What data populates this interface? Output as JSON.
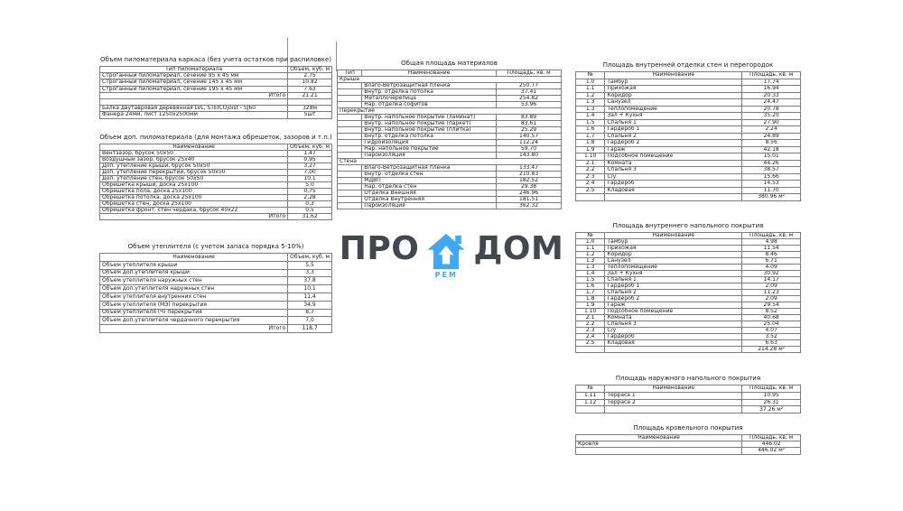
{
  "logo": {
    "word_left": "ПРО",
    "word_right": "ДОМ",
    "sub_label": "РЕМ",
    "house_color": "#3fa9f5",
    "text_color": "#43484e"
  },
  "tables": {
    "lumber_frame": {
      "title": "Объем пиломатериала каркаса (без учета остатков при распиловке)",
      "columns": [
        {
          "label": "Тип пиломатериала",
          "width": "81%"
        },
        {
          "label": "Объем, куб. м",
          "width": "19%"
        }
      ],
      "rows": [
        {
          "type": "item2",
          "cells": [
            "Строганный пиломатериал, сечение 95 х 45 мм",
            "2.75"
          ]
        },
        {
          "type": "item2",
          "cells": [
            "Строганный пиломатериал, сечение 145 х 45 мм",
            "10.82"
          ]
        },
        {
          "type": "item2",
          "cells": [
            "Строганный пиломатериал, сечение 195 х 45 мм",
            "7.63"
          ]
        },
        {
          "type": "total2",
          "cells": [
            "Итого",
            "21.21"
          ]
        },
        {
          "type": "empty2",
          "cells": [
            "",
            ""
          ]
        },
        {
          "type": "item2",
          "cells": [
            "Балка двутавровая деревянная LVL, STEICOjoist - SJ60",
            "328м"
          ]
        },
        {
          "type": "item2",
          "cells": [
            "Фанера 24мм, лист 1250х2500мм",
            "5шт"
          ]
        }
      ]
    },
    "lumber_additional": {
      "title": "Объем доп. пиломатериала (для монтажа обрешеток, зазоров и т.п.)",
      "columns": [
        {
          "label": "Наименование",
          "width": "81%"
        },
        {
          "label": "Объем, куб. м",
          "width": "19%"
        }
      ],
      "rows": [
        {
          "type": "item2",
          "cells": [
            "Вентзазор, брусок 50х50",
            "1,47"
          ]
        },
        {
          "type": "item2",
          "cells": [
            "Воздушный зазор, брусок 25х40",
            "0,95"
          ]
        },
        {
          "type": "item2",
          "cells": [
            "Доп. утепление крыши, брусок 50х50",
            "3,27"
          ]
        },
        {
          "type": "item2",
          "cells": [
            "Доп. утепление перекрытий, брусок 50х50",
            "7,00"
          ]
        },
        {
          "type": "item2",
          "cells": [
            "Доп. утепление стен, брусок 50х50",
            "10,1"
          ]
        },
        {
          "type": "item2",
          "cells": [
            "Обрешетка крыши, доска 25х100",
            "5,0"
          ]
        },
        {
          "type": "item2",
          "cells": [
            "Обрешетка пола, доска 25х100",
            "0,75"
          ]
        },
        {
          "type": "item2",
          "cells": [
            "Обрешетка потолка, доска 25х100",
            "2,28"
          ]
        },
        {
          "type": "item2",
          "cells": [
            "Обрешетка стен, доска 25х100",
            "0,3"
          ]
        },
        {
          "type": "item2",
          "cells": [
            "Обрешетка фронт. стен чердака, брусок 40х22",
            "0,5"
          ]
        },
        {
          "type": "total2",
          "cells": [
            "Итого",
            "31,62"
          ]
        }
      ]
    },
    "insulation": {
      "title": "Объем утеплителя (с учетом запаса порядка 5-10%)",
      "columns": [
        {
          "label": "Наименование",
          "width": "81%"
        },
        {
          "label": "Объем, куб. м",
          "width": "19%"
        }
      ],
      "rows": [
        {
          "type": "item2",
          "cells": [
            "Объем утеплителя крыши",
            "5,5"
          ]
        },
        {
          "type": "item2",
          "cells": [
            "Объем доп.утеплителя крыши",
            "3,3"
          ]
        },
        {
          "type": "item2",
          "cells": [
            "Объем утеплителя наружных стен",
            "37,8"
          ]
        },
        {
          "type": "item2",
          "cells": [
            "Объем доп.утеплителя наружных стен",
            "10,1"
          ]
        },
        {
          "type": "item2",
          "cells": [
            "Объем утеплителя внутренних стен",
            "11,4"
          ]
        },
        {
          "type": "item2",
          "cells": [
            "Объем утеплителя (МЭ) перекрытия",
            "34,9"
          ]
        },
        {
          "type": "item2",
          "cells": [
            "Объем утеплителя (Ч) перекрытия",
            "8,7"
          ]
        },
        {
          "type": "item2",
          "cells": [
            "Объем доп.утеплителя чердачного перекрытия",
            "7,0"
          ]
        },
        {
          "type": "total2",
          "cells": [
            "Итого",
            "118,7"
          ]
        }
      ]
    },
    "materials_area": {
      "title": "Общая площадь материалов",
      "columns": [
        {
          "label": "Тип",
          "width": "11%"
        },
        {
          "label": "Наименование",
          "width": "60%"
        },
        {
          "label": "Площадь, кв. м",
          "width": "29%"
        }
      ],
      "rows": [
        {
          "type": "group",
          "cells": [
            "Крыша"
          ]
        },
        {
          "type": "sub3",
          "cells": [
            "",
            "Влаго-Ветрозащитная пленка",
            "250.77"
          ]
        },
        {
          "type": "sub3",
          "cells": [
            "",
            "Внутр. отделка потолка",
            "37.41"
          ]
        },
        {
          "type": "sub3",
          "cells": [
            "",
            "Металлочерепица",
            "254.82"
          ]
        },
        {
          "type": "sub3",
          "cells": [
            "",
            "Нар. отделка софитов",
            "53.96"
          ]
        },
        {
          "type": "group",
          "cells": [
            "Перекрытие"
          ]
        },
        {
          "type": "sub3",
          "cells": [
            "",
            "Внутр. напольное покрытие (ламинат)",
            "83.89"
          ]
        },
        {
          "type": "sub3",
          "cells": [
            "",
            "Внутр. напольное покрытие (паркет)",
            "83.61"
          ]
        },
        {
          "type": "sub3",
          "cells": [
            "",
            "Внутр. напольное покрытие (плитка)",
            "25.29"
          ]
        },
        {
          "type": "sub3",
          "cells": [
            "",
            "Внутр. отделка потолка",
            "140.57"
          ]
        },
        {
          "type": "sub3",
          "cells": [
            "",
            "Гидроизоляция",
            "112.24"
          ]
        },
        {
          "type": "sub3",
          "cells": [
            "",
            "Нар. напольное покрытие",
            "59.70"
          ]
        },
        {
          "type": "sub3",
          "cells": [
            "",
            "Пароизоляция",
            "143.80"
          ]
        },
        {
          "type": "group",
          "cells": [
            "Стена"
          ]
        },
        {
          "type": "sub3",
          "cells": [
            "",
            "Влаго-Ветрозащитная пленка",
            "133.47"
          ]
        },
        {
          "type": "sub3",
          "cells": [
            "",
            "Внутр. отделка стен",
            "210.83"
          ]
        },
        {
          "type": "sub3",
          "cells": [
            "",
            "МДВП",
            "182.52"
          ]
        },
        {
          "type": "sub3",
          "cells": [
            "",
            "Нар. отделка стен",
            "29.38"
          ]
        },
        {
          "type": "sub3",
          "cells": [
            "",
            "Отделка Внешняя",
            "246.96"
          ]
        },
        {
          "type": "sub3",
          "cells": [
            "",
            "Отделка Внутренняя",
            "181.51"
          ]
        },
        {
          "type": "sub3",
          "cells": [
            "",
            "Пароизоляция",
            "362.32"
          ]
        }
      ]
    },
    "walls_finish": {
      "title": "Площадь внутренней отделки стен и перегородок",
      "columns": [
        {
          "label": "№",
          "width": "13%"
        },
        {
          "label": "Наименование",
          "width": "61%"
        },
        {
          "label": "Площадь, кв. м",
          "width": "26%"
        }
      ],
      "rows": [
        {
          "type": "item3",
          "cells": [
            "1.0",
            "Тамбур",
            "17.74"
          ]
        },
        {
          "type": "item3",
          "cells": [
            "1.1",
            "Прихожая",
            "16.94"
          ]
        },
        {
          "type": "item3",
          "cells": [
            "1.2",
            "Коридор",
            "20.33"
          ]
        },
        {
          "type": "item3",
          "cells": [
            "1.3",
            "Санузел",
            "24.47"
          ]
        },
        {
          "type": "item3",
          "cells": [
            "1.3",
            "Теплопомещение",
            "20.78"
          ]
        },
        {
          "type": "item3",
          "cells": [
            "1.4",
            "Зал + Кухня",
            "35.20"
          ]
        },
        {
          "type": "item3",
          "cells": [
            "1.5",
            "Спальня 1",
            "27.90"
          ]
        },
        {
          "type": "item3",
          "cells": [
            "1.6",
            "Гардероб 1",
            "2.24"
          ]
        },
        {
          "type": "item3",
          "cells": [
            "1.7",
            "Спальня 2",
            "24.89"
          ]
        },
        {
          "type": "item3",
          "cells": [
            "1.8",
            "Гардероб 2",
            "8.56"
          ]
        },
        {
          "type": "item3",
          "cells": [
            "1.9",
            "Гараж",
            "42.18"
          ]
        },
        {
          "type": "item3",
          "cells": [
            "1.10",
            "Подсобное помещение",
            "15.01"
          ]
        },
        {
          "type": "item3",
          "cells": [
            "2.1",
            "Комната",
            "44.26"
          ]
        },
        {
          "type": "item3",
          "cells": [
            "2.2",
            "Спальня 3",
            "38.57"
          ]
        },
        {
          "type": "item3",
          "cells": [
            "2.3",
            "С/у",
            "15.66"
          ]
        },
        {
          "type": "item3",
          "cells": [
            "2.4",
            "Гардероб",
            "14.53"
          ]
        },
        {
          "type": "item3",
          "cells": [
            "2.5",
            "Кладовая",
            "11.70"
          ]
        },
        {
          "type": "foot3",
          "cells": [
            "",
            "",
            "380.96 м²"
          ]
        }
      ]
    },
    "floor_inner": {
      "title": "Площадь внутреннего напольного покрытия",
      "columns": [
        {
          "label": "№",
          "width": "13%"
        },
        {
          "label": "Наименование",
          "width": "61%"
        },
        {
          "label": "Площадь, кв. м",
          "width": "26%"
        }
      ],
      "rows": [
        {
          "type": "item3",
          "cells": [
            "1.0",
            "Тамбур",
            "4.98"
          ]
        },
        {
          "type": "item3",
          "cells": [
            "1.1",
            "Прихожая",
            "11.54"
          ]
        },
        {
          "type": "item3",
          "cells": [
            "1.2",
            "Коридор",
            "8.46"
          ]
        },
        {
          "type": "item3",
          "cells": [
            "1.3",
            "Санузел",
            "6.71"
          ]
        },
        {
          "type": "item3",
          "cells": [
            "1.3",
            "Теплопомещение",
            "4.09"
          ]
        },
        {
          "type": "item3",
          "cells": [
            "1.4",
            "Зал + Кухня",
            "30.92"
          ]
        },
        {
          "type": "item3",
          "cells": [
            "1.5",
            "Спальня 1",
            "14.17"
          ]
        },
        {
          "type": "item3",
          "cells": [
            "1.6",
            "Гардероб 1",
            "2.09"
          ]
        },
        {
          "type": "item3",
          "cells": [
            "1.7",
            "Спальня 2",
            "11.23"
          ]
        },
        {
          "type": "item3",
          "cells": [
            "1.8",
            "Гардероб 2",
            "2.09"
          ]
        },
        {
          "type": "item3",
          "cells": [
            "1.9",
            "Гараж",
            "29.54"
          ]
        },
        {
          "type": "item3",
          "cells": [
            "1.10",
            "Подсобное помещение",
            "8.52"
          ]
        },
        {
          "type": "item3",
          "cells": [
            "2.1",
            "Комната",
            "40.68"
          ]
        },
        {
          "type": "item3",
          "cells": [
            "2.2",
            "Спальня 3",
            "25.04"
          ]
        },
        {
          "type": "item3",
          "cells": [
            "2.3",
            "С/у",
            "4.07"
          ]
        },
        {
          "type": "item3",
          "cells": [
            "2.4",
            "Гардероб",
            "3.52"
          ]
        },
        {
          "type": "item3",
          "cells": [
            "2.5",
            "Кладовая",
            "6.63"
          ]
        },
        {
          "type": "foot3",
          "cells": [
            "",
            "",
            "214.28 м²"
          ]
        }
      ]
    },
    "floor_outer": {
      "title": "Площадь наружного напольного покрытия",
      "columns": [
        {
          "label": "№",
          "width": "13%"
        },
        {
          "label": "Наименование",
          "width": "61%"
        },
        {
          "label": "Площадь, кв. м",
          "width": "26%"
        }
      ],
      "rows": [
        {
          "type": "item3",
          "cells": [
            "1.11",
            "Терраса 1",
            "10.95"
          ]
        },
        {
          "type": "item3",
          "cells": [
            "1.12",
            "Терраса 2",
            "26.31"
          ]
        },
        {
          "type": "foot3",
          "cells": [
            "",
            "",
            "37.26 м²"
          ]
        }
      ]
    },
    "roofing": {
      "title": "Площадь кровельного покрытия",
      "columns": [
        {
          "label": "Наименование",
          "width": "74%"
        },
        {
          "label": "Площадь, кв. м",
          "width": "26%"
        }
      ],
      "rows": [
        {
          "type": "item2",
          "cells": [
            "Кровля",
            "446.02"
          ]
        },
        {
          "type": "foot2",
          "cells": [
            "",
            "446.02 м²"
          ]
        }
      ]
    }
  }
}
